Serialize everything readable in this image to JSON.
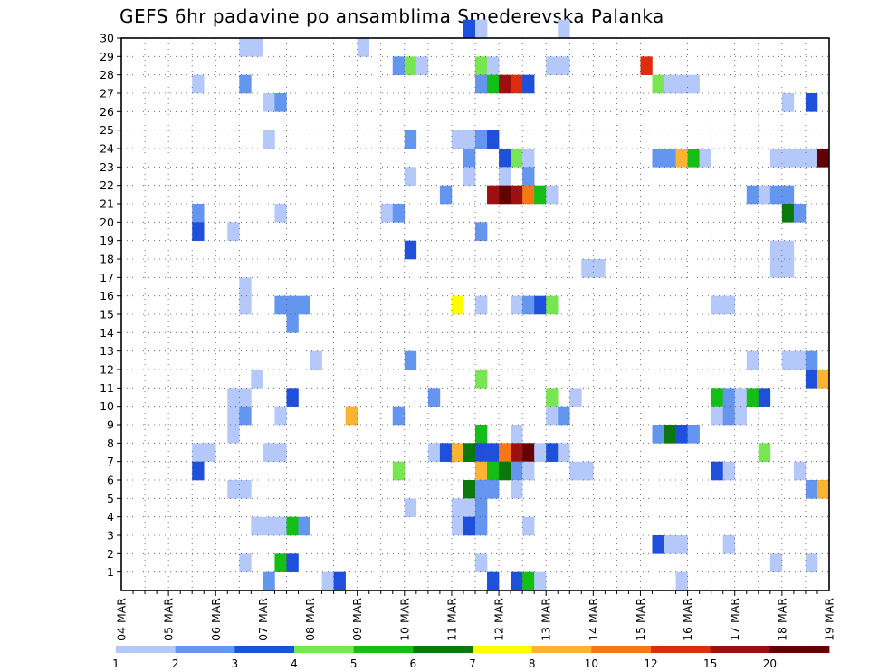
{
  "chart_data": {
    "type": "heatmap",
    "title": "GEFS 6hr padavine po ansamblima Smederevska Palanka",
    "xlabel": "",
    "ylabel": "",
    "x_tick_labels": [
      "04 MAR",
      "05 MAR",
      "06 MAR",
      "07 MAR",
      "08 MAR",
      "09 MAR",
      "10 MAR",
      "11 MAR",
      "12 MAR",
      "13 MAR",
      "14 MAR",
      "15 MAR",
      "16 MAR",
      "17 MAR",
      "18 MAR",
      "19 MAR"
    ],
    "y_tick_labels": [
      "1",
      "2",
      "3",
      "4",
      "5",
      "6",
      "7",
      "8",
      "9",
      "10",
      "11",
      "12",
      "13",
      "14",
      "15",
      "16",
      "17",
      "18",
      "19",
      "20",
      "21",
      "22",
      "23",
      "24",
      "25",
      "26",
      "27",
      "28",
      "29",
      "30"
    ],
    "xlim": [
      0,
      60
    ],
    "ylim": [
      0,
      30
    ],
    "time_step_hours": 6,
    "colorbar": {
      "labels": [
        "1",
        "2",
        "3",
        "4",
        "5",
        "6",
        "7",
        "8",
        "10",
        "12",
        "15",
        "20"
      ],
      "colors": [
        "#b4c8fa",
        "#6496f0",
        "#1e50dc",
        "#78e650",
        "#14be14",
        "#0a780a",
        "#ffff00",
        "#fab432",
        "#f57814",
        "#dc2d0f",
        "#a00f0f",
        "#640000"
      ]
    },
    "cells": [
      [
        29,
        30,
        3
      ],
      [
        30,
        30,
        1
      ],
      [
        37,
        30,
        1
      ],
      [
        10,
        29,
        1
      ],
      [
        11,
        29,
        1
      ],
      [
        20,
        29,
        1
      ],
      [
        23,
        28,
        2
      ],
      [
        24,
        28,
        4
      ],
      [
        25,
        28,
        1
      ],
      [
        30,
        28,
        4
      ],
      [
        31,
        28,
        1
      ],
      [
        36,
        28,
        1
      ],
      [
        37,
        28,
        1
      ],
      [
        44,
        28,
        10
      ],
      [
        6,
        27,
        1
      ],
      [
        10,
        27,
        2
      ],
      [
        30,
        27,
        2
      ],
      [
        31,
        27,
        5
      ],
      [
        32,
        27,
        11
      ],
      [
        33,
        27,
        10
      ],
      [
        34,
        27,
        3
      ],
      [
        45,
        27,
        4
      ],
      [
        46,
        27,
        1
      ],
      [
        47,
        27,
        1
      ],
      [
        48,
        27,
        1
      ],
      [
        12,
        26,
        1
      ],
      [
        13,
        26,
        2
      ],
      [
        56,
        26,
        1
      ],
      [
        58,
        26,
        3
      ],
      [
        12,
        24,
        1
      ],
      [
        24,
        24,
        2
      ],
      [
        28,
        24,
        1
      ],
      [
        29,
        24,
        1
      ],
      [
        30,
        24,
        2
      ],
      [
        31,
        24,
        3
      ],
      [
        29,
        23,
        2
      ],
      [
        32,
        23,
        3
      ],
      [
        33,
        23,
        4
      ],
      [
        34,
        23,
        1
      ],
      [
        45,
        23,
        2
      ],
      [
        46,
        23,
        2
      ],
      [
        47,
        23,
        8
      ],
      [
        48,
        23,
        5
      ],
      [
        49,
        23,
        1
      ],
      [
        55,
        23,
        1
      ],
      [
        56,
        23,
        1
      ],
      [
        57,
        23,
        1
      ],
      [
        58,
        23,
        1
      ],
      [
        59,
        23,
        12
      ],
      [
        24,
        22,
        1
      ],
      [
        29,
        22,
        1
      ],
      [
        32,
        22,
        1
      ],
      [
        34,
        22,
        2
      ],
      [
        27,
        21,
        2
      ],
      [
        31,
        21,
        11
      ],
      [
        32,
        21,
        12
      ],
      [
        33,
        21,
        11
      ],
      [
        34,
        21,
        9
      ],
      [
        35,
        21,
        5
      ],
      [
        36,
        21,
        1
      ],
      [
        53,
        21,
        2
      ],
      [
        54,
        21,
        1
      ],
      [
        55,
        21,
        2
      ],
      [
        56,
        21,
        2
      ],
      [
        6,
        20,
        2
      ],
      [
        13,
        20,
        1
      ],
      [
        22,
        20,
        1
      ],
      [
        23,
        20,
        2
      ],
      [
        56,
        20,
        6
      ],
      [
        57,
        20,
        2
      ],
      [
        6,
        19,
        3
      ],
      [
        9,
        19,
        1
      ],
      [
        30,
        19,
        2
      ],
      [
        24,
        18,
        3
      ],
      [
        55,
        18,
        1
      ],
      [
        56,
        18,
        1
      ],
      [
        39,
        17,
        1
      ],
      [
        40,
        17,
        1
      ],
      [
        55,
        17,
        1
      ],
      [
        56,
        17,
        1
      ],
      [
        10,
        16,
        1
      ],
      [
        10,
        15,
        1
      ],
      [
        13,
        15,
        2
      ],
      [
        14,
        15,
        2
      ],
      [
        15,
        15,
        2
      ],
      [
        28,
        15,
        7
      ],
      [
        30,
        15,
        1
      ],
      [
        33,
        15,
        1
      ],
      [
        34,
        15,
        2
      ],
      [
        35,
        15,
        3
      ],
      [
        36,
        15,
        4
      ],
      [
        50,
        15,
        1
      ],
      [
        51,
        15,
        1
      ],
      [
        14,
        14,
        2
      ],
      [
        16,
        12,
        1
      ],
      [
        24,
        12,
        2
      ],
      [
        53,
        12,
        1
      ],
      [
        56,
        12,
        1
      ],
      [
        57,
        12,
        1
      ],
      [
        58,
        12,
        2
      ],
      [
        11,
        11,
        1
      ],
      [
        30,
        11,
        4
      ],
      [
        58,
        11,
        3
      ],
      [
        59,
        11,
        8
      ],
      [
        9,
        10,
        1
      ],
      [
        10,
        10,
        1
      ],
      [
        14,
        10,
        3
      ],
      [
        26,
        10,
        2
      ],
      [
        36,
        10,
        4
      ],
      [
        38,
        10,
        1
      ],
      [
        50,
        10,
        5
      ],
      [
        51,
        10,
        2
      ],
      [
        52,
        10,
        1
      ],
      [
        53,
        10,
        5
      ],
      [
        54,
        10,
        3
      ],
      [
        9,
        9,
        1
      ],
      [
        10,
        9,
        2
      ],
      [
        13,
        9,
        1
      ],
      [
        19,
        9,
        8
      ],
      [
        23,
        9,
        2
      ],
      [
        36,
        9,
        1
      ],
      [
        37,
        9,
        2
      ],
      [
        50,
        9,
        1
      ],
      [
        51,
        9,
        2
      ],
      [
        52,
        9,
        1
      ],
      [
        9,
        8,
        1
      ],
      [
        30,
        8,
        5
      ],
      [
        33,
        8,
        1
      ],
      [
        45,
        8,
        2
      ],
      [
        46,
        8,
        6
      ],
      [
        47,
        8,
        3
      ],
      [
        48,
        8,
        2
      ],
      [
        6,
        7,
        1
      ],
      [
        7,
        7,
        1
      ],
      [
        12,
        7,
        1
      ],
      [
        13,
        7,
        1
      ],
      [
        26,
        7,
        1
      ],
      [
        27,
        7,
        3
      ],
      [
        28,
        7,
        8
      ],
      [
        29,
        7,
        6
      ],
      [
        30,
        7,
        3
      ],
      [
        31,
        7,
        3
      ],
      [
        32,
        7,
        9
      ],
      [
        33,
        7,
        11
      ],
      [
        34,
        7,
        12
      ],
      [
        35,
        7,
        1
      ],
      [
        36,
        7,
        3
      ],
      [
        37,
        7,
        1
      ],
      [
        54,
        7,
        4
      ],
      [
        6,
        6,
        3
      ],
      [
        23,
        6,
        4
      ],
      [
        30,
        6,
        8
      ],
      [
        31,
        6,
        5
      ],
      [
        32,
        6,
        6
      ],
      [
        33,
        6,
        2
      ],
      [
        34,
        6,
        1
      ],
      [
        38,
        6,
        1
      ],
      [
        39,
        6,
        1
      ],
      [
        50,
        6,
        3
      ],
      [
        51,
        6,
        1
      ],
      [
        57,
        6,
        1
      ],
      [
        9,
        5,
        1
      ],
      [
        10,
        5,
        1
      ],
      [
        29,
        5,
        6
      ],
      [
        30,
        5,
        2
      ],
      [
        31,
        5,
        2
      ],
      [
        33,
        5,
        1
      ],
      [
        58,
        5,
        2
      ],
      [
        59,
        5,
        8
      ],
      [
        24,
        4,
        1
      ],
      [
        28,
        4,
        1
      ],
      [
        29,
        4,
        1
      ],
      [
        30,
        4,
        2
      ],
      [
        11,
        3,
        1
      ],
      [
        12,
        3,
        1
      ],
      [
        13,
        3,
        1
      ],
      [
        14,
        3,
        5
      ],
      [
        15,
        3,
        2
      ],
      [
        28,
        3,
        1
      ],
      [
        29,
        3,
        3
      ],
      [
        30,
        3,
        2
      ],
      [
        34,
        3,
        1
      ],
      [
        45,
        2,
        3
      ],
      [
        46,
        2,
        1
      ],
      [
        47,
        2,
        1
      ],
      [
        51,
        2,
        1
      ],
      [
        10,
        1,
        1
      ],
      [
        13,
        1,
        5
      ],
      [
        14,
        1,
        3
      ],
      [
        30,
        1,
        1
      ],
      [
        55,
        1,
        1
      ],
      [
        58,
        1,
        1
      ],
      [
        12,
        0,
        2
      ],
      [
        17,
        0,
        1
      ],
      [
        18,
        0,
        3
      ],
      [
        31,
        0,
        3
      ],
      [
        33,
        0,
        3
      ],
      [
        34,
        0,
        5
      ],
      [
        35,
        0,
        1
      ],
      [
        47,
        0,
        1
      ]
    ]
  }
}
